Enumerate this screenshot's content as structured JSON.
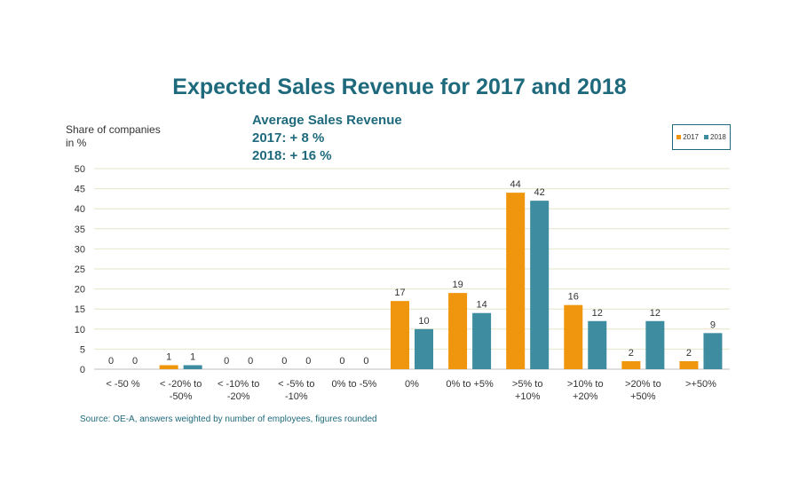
{
  "colors": {
    "accent": "#1e6a7c",
    "s2017": "#f0960e",
    "s2018": "#3d8ca0",
    "grid": "#e6e6c8"
  },
  "chart_data": {
    "type": "bar",
    "title": "Expected Sales Revenue for 2017 and 2018",
    "ylabel": "Share of companies in %",
    "ylim": [
      0,
      50
    ],
    "yticks": [
      0,
      5,
      10,
      15,
      20,
      25,
      30,
      35,
      40,
      45,
      50
    ],
    "grid": true,
    "legend_position": "top-right",
    "annotation": {
      "heading": "Average Sales Revenue",
      "line1": "2017: + 8 %",
      "line2": "2018: + 16 %"
    },
    "categories": [
      [
        "< -50 %"
      ],
      [
        "< -20% to",
        "-50%"
      ],
      [
        "< -10% to",
        "-20%"
      ],
      [
        "< -5% to",
        "-10%"
      ],
      [
        "0% to -5%"
      ],
      [
        "0%"
      ],
      [
        "0% to +5%"
      ],
      [
        ">5% to",
        "+10%"
      ],
      [
        ">10% to",
        "+20%"
      ],
      [
        ">20% to",
        "+50%"
      ],
      [
        ">+50%"
      ]
    ],
    "series": [
      {
        "name": "2017",
        "color": "#f0960e",
        "values": [
          0,
          1,
          0,
          0,
          0,
          17,
          19,
          44,
          16,
          2,
          2
        ]
      },
      {
        "name": "2018",
        "color": "#3d8ca0",
        "values": [
          0,
          1,
          0,
          0,
          0,
          10,
          14,
          42,
          12,
          12,
          9
        ]
      }
    ],
    "source": "Source: OE-A, answers weighted by number of employees, figures rounded"
  }
}
